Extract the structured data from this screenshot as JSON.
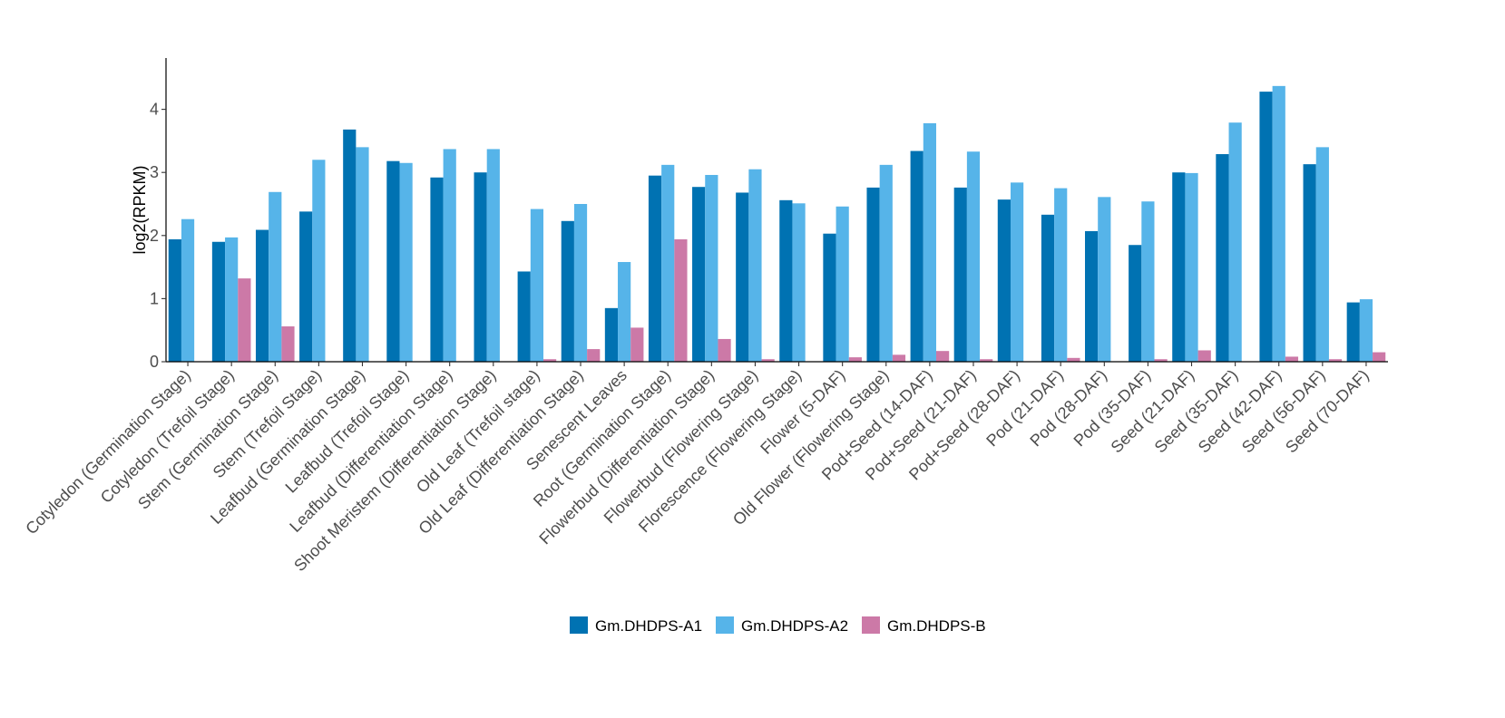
{
  "chart_data": {
    "type": "bar",
    "title": "",
    "xlabel": "",
    "ylabel": "log2(RPKM)",
    "ylim": [
      0,
      4.8
    ],
    "yticks": [
      0,
      1,
      2,
      3,
      4
    ],
    "grid": false,
    "legend_position": "bottom",
    "categories": [
      "Cotyledon (Germination Stage)",
      "Cotyledon (Trefoil Stage)",
      "Stem (Germination Stage)",
      "Stem (Trefoil Stage)",
      "Leafbud (Germination Stage)",
      "Leafbud (Trefoil Stage)",
      "Leafbud (Differentiation Stage)",
      "Shoot Meristem (Differentiation Stage)",
      "Old Leaf (Trefoil stage)",
      "Old Leaf (Differentiation Stage)",
      "Senescent Leaves",
      "Root (Germination Stage)",
      "Flowerbud (Differentiation Stage)",
      "Flowerbud (Flowering Stage)",
      "Florescence (Flowering Stage)",
      "Flower (5-DAF)",
      "Old Flower (Flowering Stage)",
      "Pod+Seed (14-DAF)",
      "Pod+Seed (21-DAF)",
      "Pod+Seed (28-DAF)",
      "Pod (21-DAF)",
      "Pod (28-DAF)",
      "Pod (35-DAF)",
      "Seed (21-DAF)",
      "Seed (35-DAF)",
      "Seed (42-DAF)",
      "Seed (56-DAF)",
      "Seed (70-DAF)"
    ],
    "series": [
      {
        "name": "Gm.DHDPS-A1",
        "color": "#0072b2",
        "values": [
          1.94,
          1.9,
          2.09,
          2.38,
          3.68,
          3.18,
          2.92,
          3.0,
          1.43,
          2.23,
          0.85,
          2.95,
          2.77,
          2.68,
          2.56,
          2.03,
          2.76,
          3.34,
          2.76,
          2.57,
          2.33,
          2.07,
          1.85,
          3.0,
          3.29,
          4.28,
          3.13,
          0.94
        ]
      },
      {
        "name": "Gm.DHDPS-A2",
        "color": "#56b4e9",
        "values": [
          2.26,
          1.97,
          2.69,
          3.2,
          3.4,
          3.15,
          3.37,
          3.37,
          2.42,
          2.5,
          1.58,
          3.12,
          2.96,
          3.05,
          2.51,
          2.46,
          3.12,
          3.78,
          3.33,
          2.84,
          2.75,
          2.61,
          2.54,
          2.99,
          3.79,
          4.37,
          3.4,
          0.99
        ]
      },
      {
        "name": "Gm.DHDPS-B",
        "color": "#cc79a7",
        "values": [
          0.0,
          1.32,
          0.56,
          0.0,
          0.0,
          0.0,
          0.0,
          0.0,
          0.04,
          0.2,
          0.54,
          1.94,
          0.36,
          0.04,
          0.0,
          0.07,
          0.11,
          0.17,
          0.04,
          0.0,
          0.06,
          0.0,
          0.04,
          0.18,
          0.0,
          0.08,
          0.04,
          0.15
        ]
      }
    ]
  }
}
